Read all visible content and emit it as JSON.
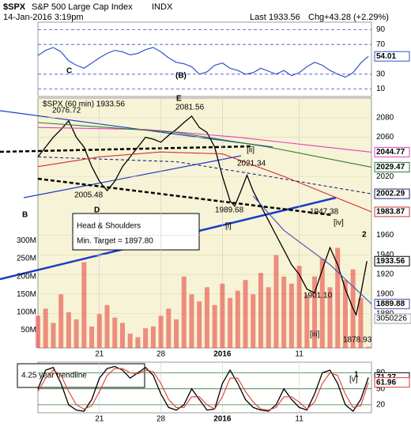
{
  "header": {
    "symbol": "$SPX",
    "name": "S&P 500 Large Cap Index",
    "exchange": "INDX",
    "date": "14-Jan-2016 3:19pm",
    "last_label": "Last",
    "last": 1933.56,
    "chg_label": "Chg",
    "chg": "+43.28 (+2.29%)"
  },
  "chart_data": [
    {
      "type": "line",
      "xlim": [
        1,
        22.7
      ],
      "ylim": [
        0,
        100
      ],
      "yticks": [
        10,
        30,
        70,
        90
      ],
      "color": "#3355cc",
      "x": [
        1,
        1.5,
        2,
        2.5,
        3,
        3.5,
        4,
        4.5,
        5,
        5.5,
        6,
        6.5,
        7,
        7.5,
        8,
        8.5,
        9,
        9.5,
        10,
        10.5,
        11,
        11.5,
        12,
        12.5,
        13,
        13.5,
        14,
        14.5,
        15,
        15.5,
        16,
        16.5,
        17,
        17.5,
        18,
        18.5,
        19,
        19.5,
        20,
        20.5,
        21,
        21.5,
        22,
        22.5
      ],
      "values": [
        55,
        62,
        66,
        60,
        48,
        42,
        38,
        45,
        52,
        58,
        62,
        60,
        56,
        58,
        63,
        66,
        60,
        52,
        46,
        44,
        40,
        30,
        33,
        42,
        45,
        38,
        35,
        30,
        32,
        38,
        34,
        30,
        35,
        28,
        32,
        40,
        46,
        42,
        35,
        30,
        26,
        32,
        45,
        54.01
      ]
    },
    {
      "type": "line",
      "xlim": [
        1,
        22.7
      ],
      "ylim": [
        1845,
        2100
      ],
      "yticks": [
        2080,
        2060,
        2020,
        1960,
        1940,
        1920,
        1900,
        1880
      ],
      "grid": true,
      "xticks": [
        {
          "value": 5,
          "label": "21"
        },
        {
          "value": 9,
          "label": "28"
        },
        {
          "value": 13,
          "label": "2016"
        },
        {
          "value": 18,
          "label": "11"
        }
      ],
      "series": [
        {
          "name": "$SPX (60 min) 1933.56",
          "color": "#000000",
          "x": [
            1,
            1.5,
            2,
            2.5,
            3,
            3.5,
            4,
            4.5,
            5,
            5.5,
            6,
            6.5,
            7,
            7.5,
            8,
            8.5,
            9,
            9.5,
            10,
            10.5,
            11,
            11.5,
            12,
            12.5,
            13,
            13.5,
            13.8,
            14.2,
            14.6,
            15,
            15.5,
            16,
            16.5,
            17,
            17.5,
            18,
            18.5,
            19,
            19.5,
            20,
            20.5,
            21,
            21.5,
            21.7,
            22,
            22.4
          ],
          "values": [
            2040,
            2050,
            2060,
            2068,
            2076.72,
            2060,
            2050,
            2030,
            2015,
            2005.48,
            2015,
            2030,
            2040,
            2050,
            2060,
            2058,
            2055,
            2062,
            2068,
            2075,
            2081.56,
            2070,
            2065,
            2050,
            2020,
            1995,
            1989.68,
            2005,
            2021.34,
            2005,
            1990,
            1975,
            1960,
            1945,
            1930,
            1920,
            1905,
            1901.1,
            1925,
            1947.38,
            1930,
            1905,
            1885,
            1878.93,
            1900,
            1933.56
          ]
        },
        {
          "color": "#e040c0",
          "x": [
            1,
            8,
            14,
            22.7
          ],
          "values": [
            2070,
            2068,
            2060,
            2044.77
          ]
        },
        {
          "color": "#2e7d32",
          "x": [
            1,
            10,
            16,
            22.7
          ],
          "values": [
            2075,
            2065,
            2050,
            2029.47
          ]
        },
        {
          "color": "#1a237e",
          "dash": true,
          "x": [
            1,
            10,
            16,
            22.7
          ],
          "values": [
            2040,
            2035,
            2020,
            2002.29
          ]
        },
        {
          "color": "#d32f2f",
          "x": [
            1,
            5,
            9,
            13,
            17,
            22.7
          ],
          "values": [
            2030,
            2040,
            2045,
            2043,
            2020,
            1983.87
          ]
        },
        {
          "color": "#3f51b5",
          "x": [
            15,
            17,
            20,
            22.7
          ],
          "values": [
            2000,
            1965,
            1930,
            1889.88
          ]
        }
      ],
      "volume": {
        "color": "#e53935",
        "ylim": [
          0,
          310000000
        ],
        "yticks": [
          {
            "value": 300000000,
            "label": "300M"
          },
          {
            "value": 250000000,
            "label": "250M"
          },
          {
            "value": 200000000,
            "label": "200M"
          },
          {
            "value": 150000000,
            "label": "150M"
          },
          {
            "value": 100000000,
            "label": "100M"
          },
          {
            "value": 50000000,
            "label": "50M"
          }
        ],
        "x": [
          1,
          1.5,
          2,
          2.5,
          3,
          3.5,
          4,
          4.5,
          5,
          5.5,
          6,
          6.5,
          7,
          7.5,
          8,
          8.5,
          9,
          9.5,
          10,
          10.5,
          11,
          11.5,
          12,
          12.5,
          13,
          13.5,
          14,
          14.5,
          15,
          15.5,
          16,
          16.5,
          17,
          17.5,
          18,
          18.5,
          19,
          19.5,
          20,
          20.5,
          21,
          21.5,
          22,
          22.5
        ],
        "values": [
          90000000,
          110000000,
          70000000,
          150000000,
          100000000,
          80000000,
          240000000,
          60000000,
          95000000,
          120000000,
          85000000,
          70000000,
          40000000,
          30000000,
          55000000,
          60000000,
          90000000,
          110000000,
          80000000,
          200000000,
          150000000,
          130000000,
          170000000,
          120000000,
          180000000,
          140000000,
          160000000,
          190000000,
          150000000,
          210000000,
          170000000,
          260000000,
          200000000,
          180000000,
          230000000,
          150000000,
          200000000,
          250000000,
          170000000,
          280000000,
          190000000,
          220000000,
          140000000,
          3050226
        ]
      },
      "annotations": [
        {
          "text": "C",
          "color": "#7b1fa2"
        },
        {
          "text": "E",
          "color": "#7b1fa2"
        },
        {
          "text": "B",
          "color": "#7b1fa2"
        },
        {
          "text": "D",
          "color": "#7b1fa2"
        },
        {
          "text": "[ii]",
          "color": "#cc0000"
        },
        {
          "text": "[i]",
          "color": "#cc0000"
        },
        {
          "text": "[iii]",
          "color": "#cc0000"
        },
        {
          "text": "[iv]",
          "color": "#cc0000"
        },
        {
          "text": "[v]",
          "color": "#cc0000"
        },
        {
          "text": "2",
          "color": "#7b1fa2"
        },
        {
          "text": "1",
          "color": "#7b1fa2"
        },
        {
          "text": "(B)",
          "color": "#000000"
        },
        {
          "text": "2076.72",
          "color": "#000000"
        },
        {
          "text": "2005.48",
          "color": "#000000"
        },
        {
          "text": "2081.56",
          "color": "#000000"
        },
        {
          "text": "2021.34",
          "color": "#000000"
        },
        {
          "text": "1989.68",
          "color": "#000000"
        },
        {
          "text": "1947.38",
          "color": "#000000"
        },
        {
          "text": "1901.10",
          "color": "#000000"
        },
        {
          "text": "1878.93",
          "color": "#000000"
        },
        {
          "text": "Head & Shoulders",
          "color": "#000000"
        },
        {
          "text": "Min. Target = 1897.80",
          "color": "#000000"
        },
        {
          "text": "4.25 year trendline",
          "color": "#000000"
        }
      ]
    },
    {
      "type": "line",
      "xlim": [
        1,
        22.7
      ],
      "ylim": [
        5,
        100
      ],
      "yticks": [
        80,
        50,
        20
      ],
      "xticks": [
        {
          "value": 5,
          "label": "21"
        },
        {
          "value": 9,
          "label": "28"
        },
        {
          "value": 13,
          "label": "2016"
        },
        {
          "value": 18,
          "label": "11"
        }
      ],
      "x": [
        1,
        1.5,
        2,
        2.5,
        3,
        3.5,
        4,
        4.5,
        5,
        5.5,
        6,
        6.5,
        7,
        7.5,
        8,
        8.5,
        9,
        9.5,
        10,
        10.5,
        11,
        11.5,
        12,
        12.5,
        13,
        13.5,
        14,
        14.5,
        15,
        15.5,
        16,
        16.5,
        17,
        17.5,
        18,
        18.5,
        19,
        19.5,
        20,
        20.5,
        21,
        21.5,
        22,
        22.5
      ],
      "series": [
        {
          "color": "#000000",
          "values": [
            50,
            85,
            90,
            60,
            20,
            10,
            8,
            30,
            70,
            88,
            92,
            85,
            70,
            80,
            90,
            75,
            40,
            15,
            10,
            20,
            50,
            30,
            10,
            12,
            60,
            85,
            60,
            30,
            15,
            10,
            8,
            20,
            50,
            30,
            15,
            10,
            40,
            80,
            85,
            60,
            20,
            8,
            30,
            71.27
          ]
        },
        {
          "color": "#e53935",
          "values": [
            45,
            70,
            85,
            75,
            45,
            20,
            12,
            18,
            45,
            75,
            88,
            88,
            80,
            78,
            85,
            82,
            60,
            30,
            15,
            15,
            35,
            35,
            20,
            12,
            35,
            70,
            70,
            45,
            25,
            12,
            10,
            15,
            35,
            35,
            25,
            12,
            25,
            60,
            80,
            75,
            40,
            15,
            18,
            61.96
          ]
        }
      ]
    }
  ]
}
